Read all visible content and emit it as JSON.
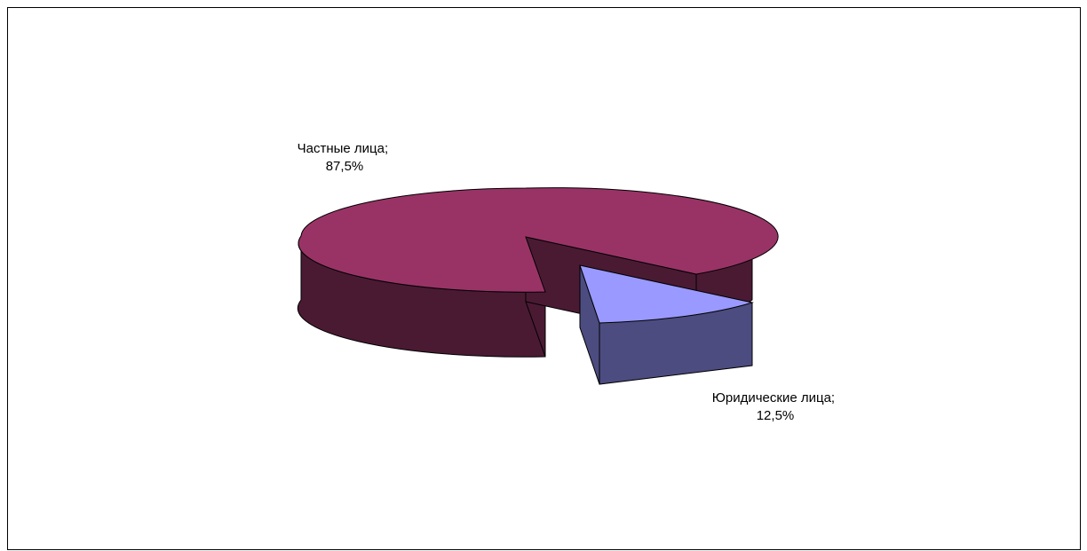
{
  "chart_data": {
    "type": "pie",
    "style": "3d-exploded",
    "title": "",
    "slices": [
      {
        "label": "Частные лица",
        "value": 87.5,
        "value_text": "87,5%",
        "color": "#993366",
        "side_color": "#4a1a33"
      },
      {
        "label": "Юридические лица",
        "value": 12.5,
        "value_text": "12,5%",
        "color": "#9999ff",
        "side_color": "#4c4c80"
      }
    ],
    "label_separator": ";"
  }
}
